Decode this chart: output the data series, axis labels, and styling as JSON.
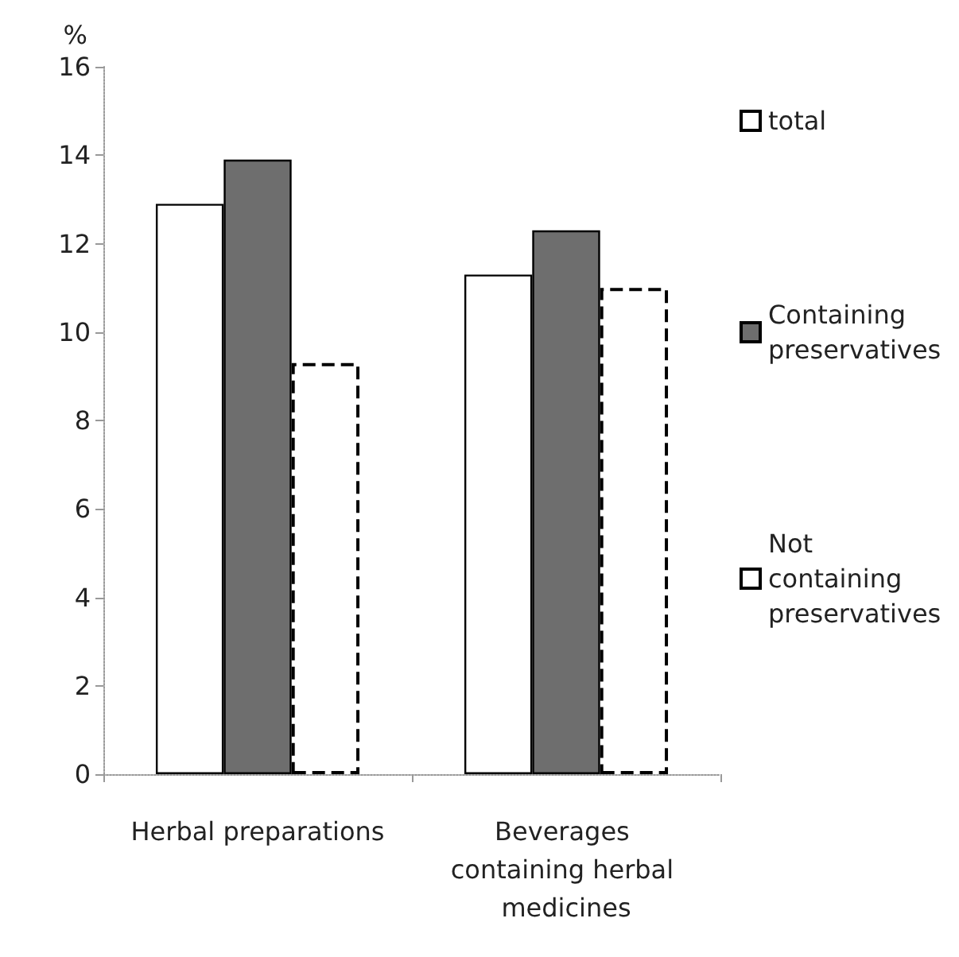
{
  "chart_data": {
    "type": "bar",
    "ylabel": "%",
    "categories": [
      "Herbal preparations",
      "Beverages containing herbal medicines"
    ],
    "series": [
      {
        "name": "total",
        "color": "#ffffff",
        "values": [
          12.9,
          11.3
        ],
        "line_style": "solid"
      },
      {
        "name": "Containing preservatives",
        "color": "#6e6e6e",
        "values": [
          13.9,
          12.3
        ],
        "line_style": "solid"
      },
      {
        "name": "Not containing preservatives",
        "color": "#ffffff",
        "values": [
          9.3,
          11.0
        ],
        "line_style": "dashed"
      }
    ],
    "ylim": [
      0,
      16
    ],
    "yticks": [
      0,
      2,
      4,
      6,
      8,
      10,
      12,
      14,
      16
    ],
    "grid": false,
    "legend": "right"
  }
}
